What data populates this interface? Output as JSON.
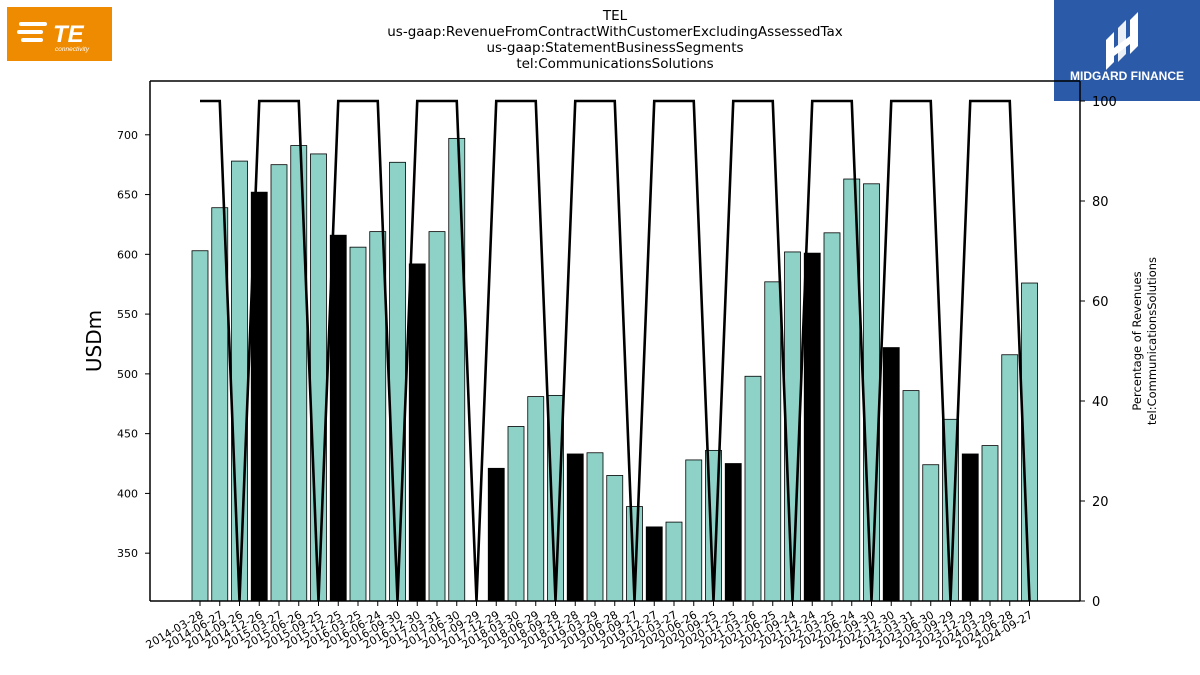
{
  "header": {
    "title_lines": [
      "TEL",
      "us-gaap:RevenueFromContractWithCustomerExcludingAssessedTax",
      "us-gaap:StatementBusinessSegments",
      "tel:CommunicationsSolutions"
    ]
  },
  "logos": {
    "left": {
      "brand": "TE",
      "sub": "connectivity",
      "color": "#ef8b00"
    },
    "right": {
      "brand": "MIDGARD FINANCE",
      "color": "#2b5aa8"
    }
  },
  "chart_data": {
    "type": "bar",
    "ylabel": "USDm",
    "y2label_lines": [
      "Percentage of Revenues",
      "tel:CommunicationsSolutions"
    ],
    "ylim": [
      310,
      745
    ],
    "y2lim": [
      0,
      104
    ],
    "yticks": [
      350,
      400,
      450,
      500,
      550,
      600,
      650,
      700
    ],
    "y2ticks": [
      0,
      20,
      40,
      60,
      80,
      100
    ],
    "colors": {
      "bar": "#8ed1c6",
      "fiscal_year_end_bar": "#000000",
      "line": "#000000"
    },
    "categories": [
      "2014-03-28",
      "2014-06-27",
      "2014-09-26",
      "2014-12-26",
      "2015-03-27",
      "2015-06-26",
      "2015-09-25",
      "2015-12-25",
      "2016-03-25",
      "2016-06-24",
      "2016-09-30",
      "2016-12-30",
      "2017-03-31",
      "2017-06-30",
      "2017-09-29",
      "2017-12-29",
      "2018-03-30",
      "2018-06-29",
      "2018-09-28",
      "2018-12-28",
      "2019-03-29",
      "2019-06-28",
      "2019-09-27",
      "2019-12-27",
      "2020-03-27",
      "2020-06-26",
      "2020-09-25",
      "2020-12-25",
      "2021-03-26",
      "2021-06-25",
      "2021-09-24",
      "2021-12-24",
      "2022-03-25",
      "2022-06-24",
      "2022-09-30",
      "2022-12-30",
      "2023-03-31",
      "2023-06-30",
      "2023-09-29",
      "2023-12-29",
      "2024-03-29",
      "2024-06-28",
      "2024-09-27"
    ],
    "series": [
      {
        "values": [
          603,
          639,
          678,
          652,
          675,
          691,
          684,
          616,
          606,
          619,
          677,
          592,
          619,
          697,
          null,
          421,
          456,
          481,
          482,
          433,
          434,
          415,
          389,
          372,
          376,
          428,
          436,
          425,
          498,
          577,
          602,
          601,
          618,
          663,
          659,
          522,
          486,
          424,
          462,
          433,
          440,
          516,
          576
        ],
        "highlight": [
          false,
          false,
          false,
          true,
          false,
          false,
          false,
          true,
          false,
          false,
          false,
          true,
          false,
          false,
          false,
          true,
          false,
          false,
          false,
          true,
          false,
          false,
          false,
          true,
          false,
          false,
          false,
          true,
          false,
          false,
          false,
          true,
          false,
          false,
          false,
          true,
          false,
          false,
          false,
          true,
          false,
          false,
          false
        ]
      },
      {
        "values": [
          100,
          100,
          0,
          100,
          100,
          100,
          0,
          100,
          100,
          100,
          0,
          100,
          100,
          100,
          0,
          100,
          100,
          100,
          0,
          100,
          100,
          100,
          0,
          100,
          100,
          100,
          0,
          100,
          100,
          100,
          0,
          100,
          100,
          100,
          0,
          100,
          100,
          100,
          0,
          100,
          100,
          100,
          0
        ]
      }
    ]
  }
}
